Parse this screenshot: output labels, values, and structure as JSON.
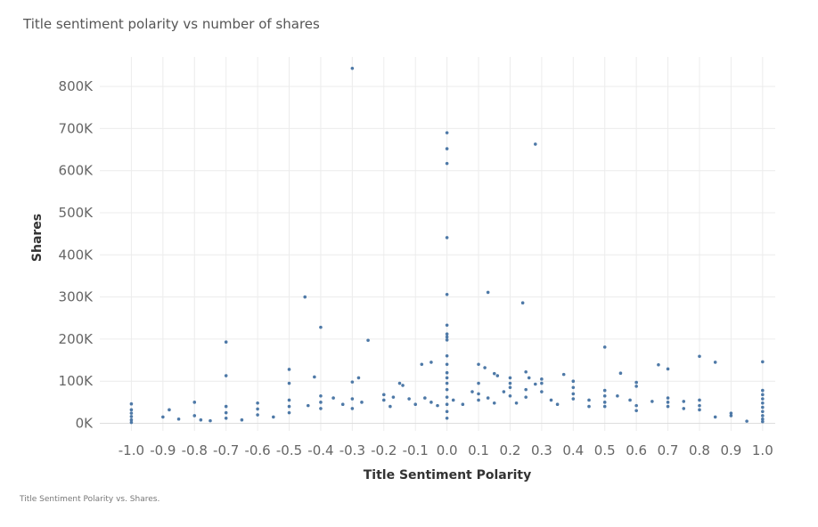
{
  "chart_data": {
    "type": "scatter",
    "title": "Title sentiment polarity vs number of shares",
    "xlabel": "Title Sentiment Polarity",
    "ylabel": "Shares",
    "xlim": [
      -1.1,
      1.04
    ],
    "ylim": [
      -18000,
      870000
    ],
    "grid": true,
    "marker_color": "#4e79a7",
    "x_ticks": [
      -1.0,
      -0.9,
      -0.8,
      -0.7,
      -0.6,
      -0.5,
      -0.4,
      -0.3,
      -0.2,
      -0.1,
      0.0,
      0.1,
      0.2,
      0.3,
      0.4,
      0.5,
      0.6,
      0.7,
      0.8,
      0.9,
      1.0
    ],
    "x_tick_labels": [
      "-1.0",
      "-0.9",
      "-0.8",
      "-0.7",
      "-0.6",
      "-0.5",
      "-0.4",
      "-0.3",
      "-0.2",
      "-0.1",
      "0.0",
      "0.1",
      "0.2",
      "0.3",
      "0.4",
      "0.5",
      "0.6",
      "0.7",
      "0.8",
      "0.9",
      "1.0"
    ],
    "y_ticks": [
      0,
      100000,
      200000,
      300000,
      400000,
      500000,
      600000,
      700000,
      800000
    ],
    "y_tick_labels": [
      "0K",
      "100K",
      "200K",
      "300K",
      "400K",
      "500K",
      "600K",
      "700K",
      "800K"
    ],
    "series": [
      {
        "points": [
          [
            -0.3,
            843000
          ],
          [
            0.0,
            690000
          ],
          [
            0.0,
            652000
          ],
          [
            0.0,
            617000
          ],
          [
            0.28,
            663000
          ],
          [
            0.0,
            441000
          ],
          [
            0.0,
            306000
          ],
          [
            0.0,
            233000
          ],
          [
            0.0,
            212000
          ],
          [
            0.0,
            205000
          ],
          [
            0.0,
            198000
          ],
          [
            0.0,
            160000
          ],
          [
            0.0,
            140000
          ],
          [
            0.0,
            120000
          ],
          [
            0.0,
            108000
          ],
          [
            0.0,
            95000
          ],
          [
            0.0,
            80000
          ],
          [
            0.0,
            62000
          ],
          [
            0.0,
            45000
          ],
          [
            0.0,
            28000
          ],
          [
            0.0,
            12000
          ],
          [
            -0.45,
            300000
          ],
          [
            0.13,
            311000
          ],
          [
            0.24,
            286000
          ],
          [
            -0.4,
            228000
          ],
          [
            -0.7,
            193000
          ],
          [
            -0.25,
            197000
          ],
          [
            0.5,
            181000
          ],
          [
            0.8,
            159000
          ],
          [
            0.85,
            145000
          ],
          [
            1.0,
            146000
          ],
          [
            0.1,
            140000
          ],
          [
            0.12,
            132000
          ],
          [
            0.67,
            139000
          ],
          [
            0.7,
            129000
          ],
          [
            -0.5,
            128000
          ],
          [
            -0.7,
            113000
          ],
          [
            -0.42,
            110000
          ],
          [
            -0.3,
            98000
          ],
          [
            -0.28,
            108000
          ],
          [
            -0.15,
            95000
          ],
          [
            -0.14,
            90000
          ],
          [
            -0.08,
            140000
          ],
          [
            -0.05,
            145000
          ],
          [
            0.15,
            118000
          ],
          [
            0.16,
            113000
          ],
          [
            0.2,
            108000
          ],
          [
            0.25,
            122000
          ],
          [
            0.26,
            108000
          ],
          [
            0.28,
            93000
          ],
          [
            0.3,
            105000
          ],
          [
            0.3,
            95000
          ],
          [
            0.37,
            116000
          ],
          [
            0.4,
            100000
          ],
          [
            0.4,
            85000
          ],
          [
            0.55,
            119000
          ],
          [
            0.6,
            97000
          ],
          [
            0.6,
            88000
          ],
          [
            0.5,
            78000
          ],
          [
            0.5,
            65000
          ],
          [
            0.54,
            65000
          ],
          [
            0.58,
            55000
          ],
          [
            0.65,
            52000
          ],
          [
            0.7,
            60000
          ],
          [
            0.7,
            50000
          ],
          [
            0.75,
            52000
          ],
          [
            0.8,
            55000
          ],
          [
            0.8,
            42000
          ],
          [
            0.9,
            24000
          ],
          [
            0.95,
            5000
          ],
          [
            1.0,
            78000
          ],
          [
            1.0,
            68000
          ],
          [
            1.0,
            58000
          ],
          [
            1.0,
            48000
          ],
          [
            1.0,
            38000
          ],
          [
            1.0,
            28000
          ],
          [
            1.0,
            18000
          ],
          [
            1.0,
            10000
          ],
          [
            1.0,
            4000
          ],
          [
            -1.0,
            46000
          ],
          [
            -1.0,
            32000
          ],
          [
            -1.0,
            24000
          ],
          [
            -1.0,
            16000
          ],
          [
            -1.0,
            8000
          ],
          [
            -1.0,
            2000
          ],
          [
            -0.9,
            15000
          ],
          [
            -0.88,
            32000
          ],
          [
            -0.85,
            10000
          ],
          [
            -0.8,
            50000
          ],
          [
            -0.8,
            18000
          ],
          [
            -0.78,
            8000
          ],
          [
            -0.75,
            6000
          ],
          [
            -0.7,
            40000
          ],
          [
            -0.7,
            25000
          ],
          [
            -0.7,
            12000
          ],
          [
            -0.65,
            8000
          ],
          [
            -0.6,
            48000
          ],
          [
            -0.6,
            34000
          ],
          [
            -0.6,
            20000
          ],
          [
            -0.55,
            15000
          ],
          [
            -0.5,
            95000
          ],
          [
            -0.5,
            55000
          ],
          [
            -0.5,
            40000
          ],
          [
            -0.5,
            25000
          ],
          [
            -0.44,
            42000
          ],
          [
            -0.4,
            65000
          ],
          [
            -0.4,
            50000
          ],
          [
            -0.4,
            35000
          ],
          [
            -0.36,
            60000
          ],
          [
            -0.33,
            45000
          ],
          [
            -0.3,
            58000
          ],
          [
            -0.3,
            35000
          ],
          [
            -0.27,
            50000
          ],
          [
            -0.2,
            68000
          ],
          [
            -0.2,
            55000
          ],
          [
            -0.18,
            40000
          ],
          [
            -0.17,
            62000
          ],
          [
            -0.12,
            58000
          ],
          [
            -0.1,
            45000
          ],
          [
            -0.07,
            60000
          ],
          [
            -0.05,
            50000
          ],
          [
            -0.03,
            42000
          ],
          [
            0.02,
            55000
          ],
          [
            0.05,
            45000
          ],
          [
            0.08,
            75000
          ],
          [
            0.1,
            95000
          ],
          [
            0.1,
            70000
          ],
          [
            0.1,
            55000
          ],
          [
            0.13,
            60000
          ],
          [
            0.15,
            48000
          ],
          [
            0.18,
            75000
          ],
          [
            0.2,
            95000
          ],
          [
            0.2,
            85000
          ],
          [
            0.2,
            65000
          ],
          [
            0.22,
            48000
          ],
          [
            0.25,
            80000
          ],
          [
            0.25,
            62000
          ],
          [
            0.3,
            75000
          ],
          [
            0.33,
            55000
          ],
          [
            0.35,
            45000
          ],
          [
            0.4,
            70000
          ],
          [
            0.4,
            58000
          ],
          [
            0.45,
            55000
          ],
          [
            0.45,
            40000
          ],
          [
            0.5,
            50000
          ],
          [
            0.5,
            40000
          ],
          [
            0.6,
            42000
          ],
          [
            0.6,
            30000
          ],
          [
            0.7,
            40000
          ],
          [
            0.75,
            35000
          ],
          [
            0.8,
            32000
          ],
          [
            0.85,
            15000
          ],
          [
            0.9,
            18000
          ]
        ]
      }
    ]
  },
  "caption": "Title Sentiment Polarity vs. Shares."
}
